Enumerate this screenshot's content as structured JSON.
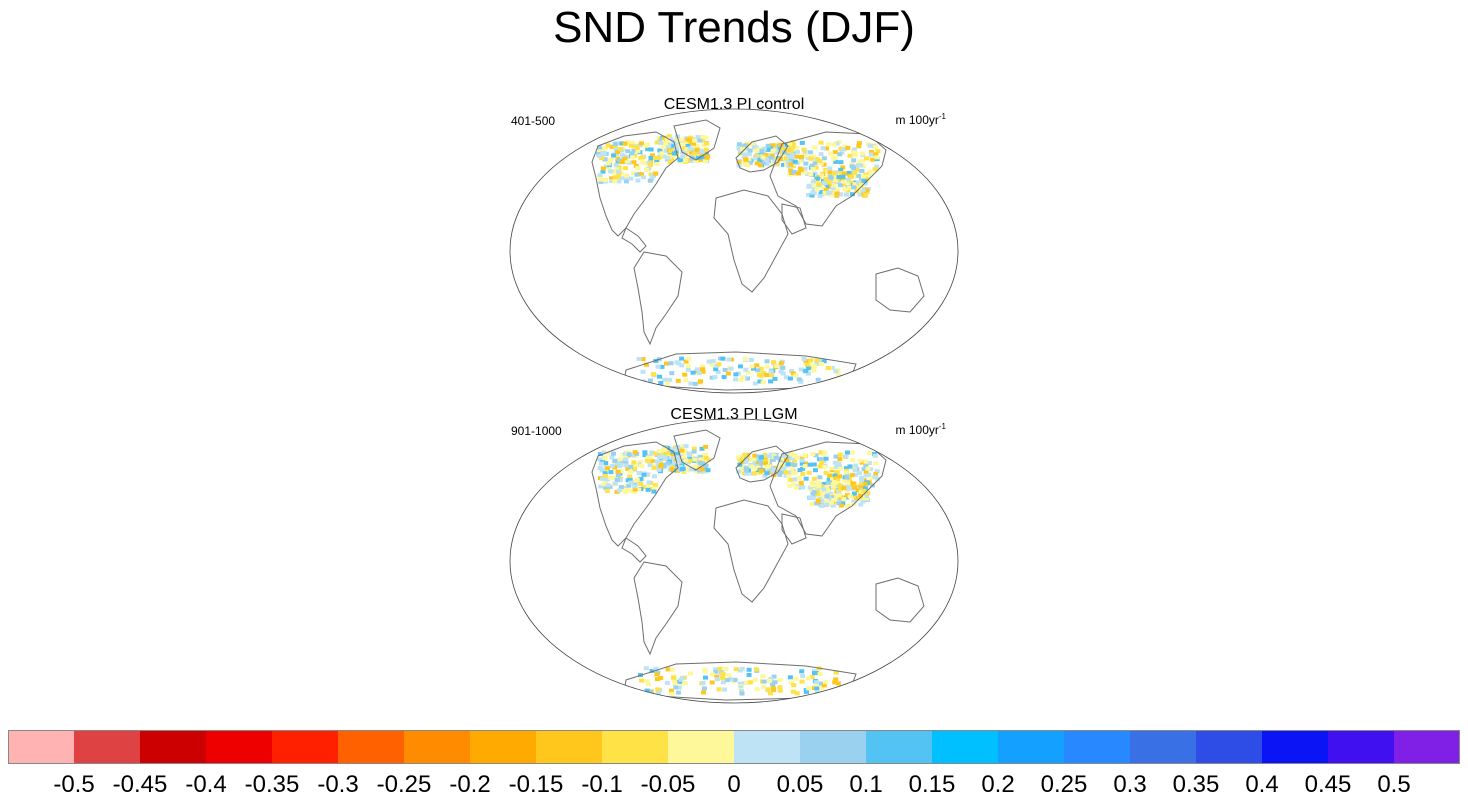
{
  "title": "SND Trends (DJF)",
  "panels": [
    {
      "title": "CESM1.3 PI control",
      "period": "401-500",
      "units": "m 100yr",
      "units_exp": "-1"
    },
    {
      "title": "CESM1.3 PI LGM",
      "period": "901-1000",
      "units": "m 100yr",
      "units_exp": "-1"
    }
  ],
  "colorbar": {
    "labels": [
      "-0.5",
      "-0.45",
      "-0.4",
      "-0.35",
      "-0.3",
      "-0.25",
      "-0.2",
      "-0.15",
      "-0.1",
      "-0.05",
      "0",
      "0.05",
      "0.1",
      "0.15",
      "0.2",
      "0.25",
      "0.3",
      "0.35",
      "0.4",
      "0.45",
      "0.5"
    ],
    "colors": [
      "#ffb3b3",
      "#de4242",
      "#cc0000",
      "#ee0000",
      "#ff2000",
      "#ff6000",
      "#ff8c00",
      "#ffaa00",
      "#ffc71c",
      "#ffe245",
      "#fff89a",
      "#bde3f5",
      "#9ad1ee",
      "#52c3f2",
      "#00c0ff",
      "#14a0ff",
      "#2888ff",
      "#3a70e6",
      "#2d4de6",
      "#0a14f5",
      "#4010f0",
      "#8020e6"
    ]
  },
  "colors": {
    "land_outline": "#6e6e6e",
    "snow_increase": "#bde3f5",
    "snow_decrease": "#fff89a"
  }
}
